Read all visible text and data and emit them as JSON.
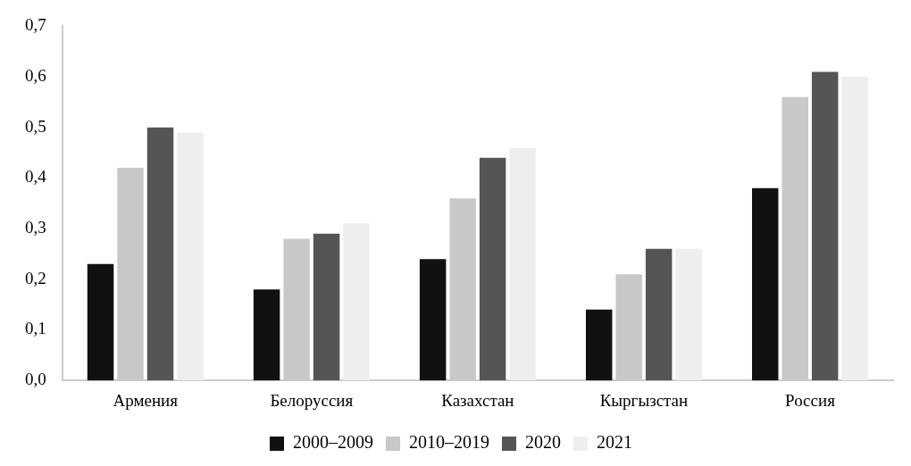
{
  "chart_data": {
    "type": "bar",
    "categories": [
      "Армения",
      "Белоруссия",
      "Казахстан",
      "Кыргызстан",
      "Россия"
    ],
    "series": [
      {
        "name": "2000–2009",
        "color": "#111111",
        "values": [
          0.23,
          0.18,
          0.24,
          0.14,
          0.38
        ]
      },
      {
        "name": "2010–2019",
        "color": "#c8c8c8",
        "values": [
          0.42,
          0.28,
          0.36,
          0.21,
          0.56
        ]
      },
      {
        "name": "2020",
        "color": "#555555",
        "values": [
          0.5,
          0.29,
          0.44,
          0.26,
          0.61
        ]
      },
      {
        "name": "2021",
        "color": "#eeeeee",
        "values": [
          0.49,
          0.31,
          0.46,
          0.26,
          0.6
        ]
      }
    ],
    "ylim": [
      0,
      0.7
    ],
    "yticks": [
      {
        "value": 0,
        "label": "0,0"
      },
      {
        "value": 0.1,
        "label": "0,1"
      },
      {
        "value": 0.2,
        "label": "0,2"
      },
      {
        "value": 0.3,
        "label": "0,3"
      },
      {
        "value": 0.4,
        "label": "0,4"
      },
      {
        "value": 0.5,
        "label": "0,5"
      },
      {
        "value": 0.6,
        "label": "0,6"
      },
      {
        "value": 0.7,
        "label": "0,7"
      }
    ],
    "grid": false,
    "legend": "bottom"
  }
}
